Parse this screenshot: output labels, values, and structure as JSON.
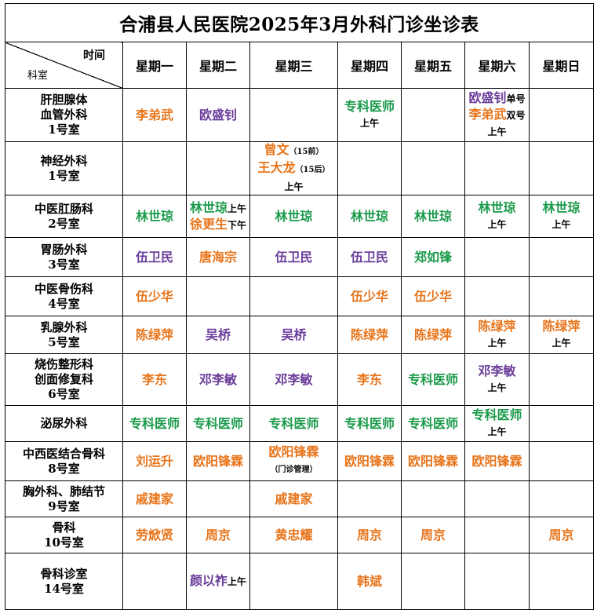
{
  "title": "合浦县人民医院2025年3月外科门诊坐诊表",
  "corner": {
    "time_label": "时间",
    "dept_label": "科室"
  },
  "days": [
    "星期一",
    "星期二",
    "星期三",
    "星期四",
    "星期五",
    "星期六",
    "星期日"
  ],
  "rows": [
    {
      "dept": [
        "肝胆腺体",
        "血管外科",
        "1号室"
      ],
      "cells": [
        [
          {
            "t": "李弟武",
            "c": "orange"
          }
        ],
        [
          {
            "t": "欧盛钊",
            "c": "purple"
          }
        ],
        [],
        [
          {
            "t": "专科医师",
            "c": "green"
          },
          {
            "t": "上午",
            "c": "note",
            "nl": true
          }
        ],
        [],
        [
          {
            "t": "欧盛钊",
            "c": "purple"
          },
          {
            "t": "单号",
            "c": "note"
          },
          {
            "t": "李弟武",
            "c": "orange",
            "nl": true
          },
          {
            "t": "双号",
            "c": "note"
          },
          {
            "t": "上午",
            "c": "note",
            "nl": true
          }
        ],
        []
      ]
    },
    {
      "dept": [
        "神经外科",
        "1号室"
      ],
      "cells": [
        [],
        [],
        [
          {
            "t": "曾文",
            "c": "orange"
          },
          {
            "t": "（15前）",
            "c": "tiny"
          },
          {
            "t": "王大龙",
            "c": "orange",
            "nl": true
          },
          {
            "t": "（15后）",
            "c": "tiny"
          },
          {
            "t": "上午",
            "c": "note",
            "nl": true
          }
        ],
        [],
        [],
        [],
        []
      ]
    },
    {
      "dept": [
        "中医肛肠科",
        "2号室"
      ],
      "cells": [
        [
          {
            "t": "林世琼",
            "c": "green"
          }
        ],
        [
          {
            "t": "林世琼",
            "c": "green"
          },
          {
            "t": "上午",
            "c": "note"
          },
          {
            "t": "徐更生",
            "c": "orange",
            "nl": true
          },
          {
            "t": "下午",
            "c": "note"
          }
        ],
        [
          {
            "t": "林世琼",
            "c": "green"
          }
        ],
        [
          {
            "t": "林世琼",
            "c": "green"
          }
        ],
        [
          {
            "t": "林世琼",
            "c": "green"
          }
        ],
        [
          {
            "t": "林世琼",
            "c": "green"
          },
          {
            "t": "上午",
            "c": "note",
            "nl": true
          }
        ],
        [
          {
            "t": "林世琼",
            "c": "green"
          },
          {
            "t": "上午",
            "c": "note",
            "nl": true
          }
        ]
      ]
    },
    {
      "dept": [
        "胃肠外科",
        "3号室"
      ],
      "cells": [
        [
          {
            "t": "伍卫民",
            "c": "purple"
          }
        ],
        [
          {
            "t": "唐海宗",
            "c": "orange"
          }
        ],
        [
          {
            "t": "伍卫民",
            "c": "purple"
          }
        ],
        [
          {
            "t": "伍卫民",
            "c": "purple"
          }
        ],
        [
          {
            "t": "郑如锋",
            "c": "green"
          }
        ],
        [],
        []
      ]
    },
    {
      "dept": [
        "中医骨伤科",
        "4号室"
      ],
      "cells": [
        [
          {
            "t": "伍少华",
            "c": "orange"
          }
        ],
        [],
        [],
        [
          {
            "t": "伍少华",
            "c": "orange"
          }
        ],
        [
          {
            "t": "伍少华",
            "c": "orange"
          }
        ],
        [],
        []
      ]
    },
    {
      "dept": [
        "乳腺外科",
        "5号室"
      ],
      "cells": [
        [
          {
            "t": "陈绿萍",
            "c": "orange"
          }
        ],
        [
          {
            "t": "吴桥",
            "c": "purple"
          }
        ],
        [
          {
            "t": "吴桥",
            "c": "purple"
          }
        ],
        [
          {
            "t": "陈绿萍",
            "c": "orange"
          }
        ],
        [
          {
            "t": "陈绿萍",
            "c": "orange"
          }
        ],
        [
          {
            "t": "陈绿萍",
            "c": "orange"
          },
          {
            "t": "上午",
            "c": "note",
            "nl": true
          }
        ],
        [
          {
            "t": "陈绿萍",
            "c": "orange"
          },
          {
            "t": "上午",
            "c": "note",
            "nl": true
          }
        ]
      ]
    },
    {
      "dept": [
        "烧伤整形科",
        "创面修复科",
        "6号室"
      ],
      "cells": [
        [
          {
            "t": "李东",
            "c": "orange"
          }
        ],
        [
          {
            "t": "邓李敏",
            "c": "purple"
          }
        ],
        [
          {
            "t": "邓李敏",
            "c": "purple"
          }
        ],
        [
          {
            "t": "李东",
            "c": "orange"
          }
        ],
        [
          {
            "t": "专科医师",
            "c": "green"
          }
        ],
        [
          {
            "t": "邓李敏",
            "c": "purple"
          },
          {
            "t": "上午",
            "c": "note",
            "nl": true
          }
        ],
        []
      ]
    },
    {
      "dept": [
        "泌尿外科"
      ],
      "cells": [
        [
          {
            "t": "专科医师",
            "c": "green"
          }
        ],
        [
          {
            "t": "专科医师",
            "c": "green"
          }
        ],
        [
          {
            "t": "专科医师",
            "c": "green"
          }
        ],
        [
          {
            "t": "专科医师",
            "c": "green"
          }
        ],
        [
          {
            "t": "专科医师",
            "c": "green"
          }
        ],
        [
          {
            "t": "专科医师",
            "c": "green"
          },
          {
            "t": "上午",
            "c": "note",
            "nl": true
          }
        ],
        []
      ]
    },
    {
      "dept": [
        "中西医结合骨科",
        "8号室"
      ],
      "cells": [
        [
          {
            "t": "刘运升",
            "c": "orange"
          }
        ],
        [
          {
            "t": "欧阳锋霖",
            "c": "orange"
          }
        ],
        [
          {
            "t": "欧阳锋霖",
            "c": "orange"
          },
          {
            "t": "（门诊管理）",
            "c": "tiny",
            "nl": true
          }
        ],
        [
          {
            "t": "欧阳锋霖",
            "c": "orange"
          }
        ],
        [
          {
            "t": "欧阳锋霖",
            "c": "orange"
          }
        ],
        [
          {
            "t": "欧阳锋霖",
            "c": "orange"
          }
        ],
        []
      ]
    },
    {
      "dept": [
        "胸外科、肺结节",
        "9号室"
      ],
      "cells": [
        [
          {
            "t": "戚建家",
            "c": "orange"
          }
        ],
        [],
        [
          {
            "t": "戚建家",
            "c": "orange"
          }
        ],
        [],
        [],
        [],
        []
      ]
    },
    {
      "dept": [
        "骨科",
        "10号室"
      ],
      "cells": [
        [
          {
            "t": "劳焮贤",
            "c": "orange"
          }
        ],
        [
          {
            "t": "周京",
            "c": "orange"
          }
        ],
        [
          {
            "t": "黄忠耀",
            "c": "orange"
          }
        ],
        [
          {
            "t": "周京",
            "c": "orange"
          }
        ],
        [
          {
            "t": "周京",
            "c": "orange"
          }
        ],
        [],
        [
          {
            "t": "周京",
            "c": "orange"
          }
        ]
      ]
    },
    {
      "dept": [
        "骨科诊室",
        "14号室"
      ],
      "cells": [
        [],
        [
          {
            "t": "颜以祚",
            "c": "purple"
          },
          {
            "t": "上午",
            "c": "note"
          }
        ],
        [],
        [
          {
            "t": "韩斌",
            "c": "orange"
          }
        ],
        [],
        [],
        []
      ]
    }
  ]
}
